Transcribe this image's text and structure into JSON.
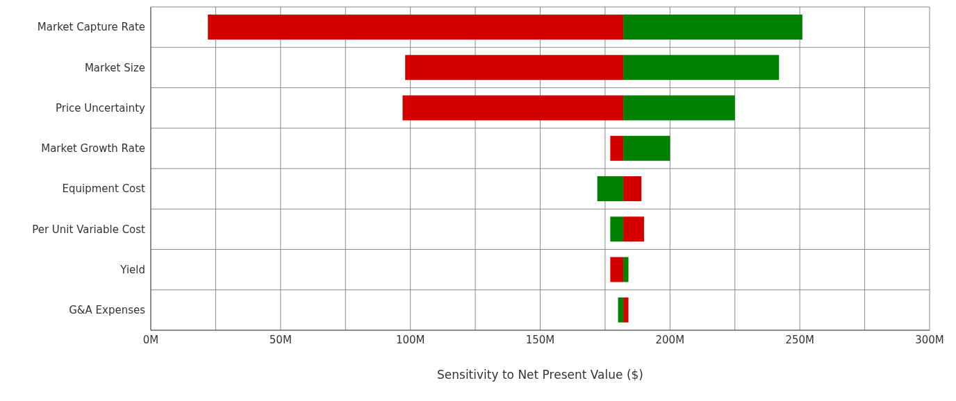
{
  "chart_data": {
    "type": "bar",
    "orientation": "horizontal",
    "xlabel": "Sensitivity to Net Present Value ($)",
    "categories": [
      "Market Capture Rate",
      "Market Size",
      "Price Uncertainty",
      "Market Growth Rate",
      "Equipment Cost",
      "Per Unit Variable Cost",
      "Yield",
      "G&A Expenses"
    ],
    "series": [
      {
        "color": "#d40000",
        "base": [
          22,
          98,
          97,
          177,
          182,
          182,
          177,
          182
        ],
        "values": [
          160,
          84,
          85,
          5,
          7,
          8,
          5,
          2
        ]
      },
      {
        "color": "#008000",
        "base": [
          182,
          182,
          182,
          182,
          172,
          177,
          182,
          180
        ],
        "values": [
          69,
          60,
          43,
          18,
          10,
          5,
          2,
          2
        ]
      }
    ],
    "xlim": [
      0,
      300
    ],
    "xticks": [
      {
        "value": 0,
        "label": "0M"
      },
      {
        "value": 25,
        "label": null
      },
      {
        "value": 50,
        "label": "50M"
      },
      {
        "value": 75,
        "label": null
      },
      {
        "value": 100,
        "label": "100M"
      },
      {
        "value": 125,
        "label": null
      },
      {
        "value": 150,
        "label": "150M"
      },
      {
        "value": 175,
        "label": null
      },
      {
        "value": 200,
        "label": "200M"
      },
      {
        "value": 225,
        "label": null
      },
      {
        "value": 250,
        "label": "250M"
      },
      {
        "value": 275,
        "label": null
      },
      {
        "value": 300,
        "label": "300M"
      }
    ],
    "grid": true
  }
}
